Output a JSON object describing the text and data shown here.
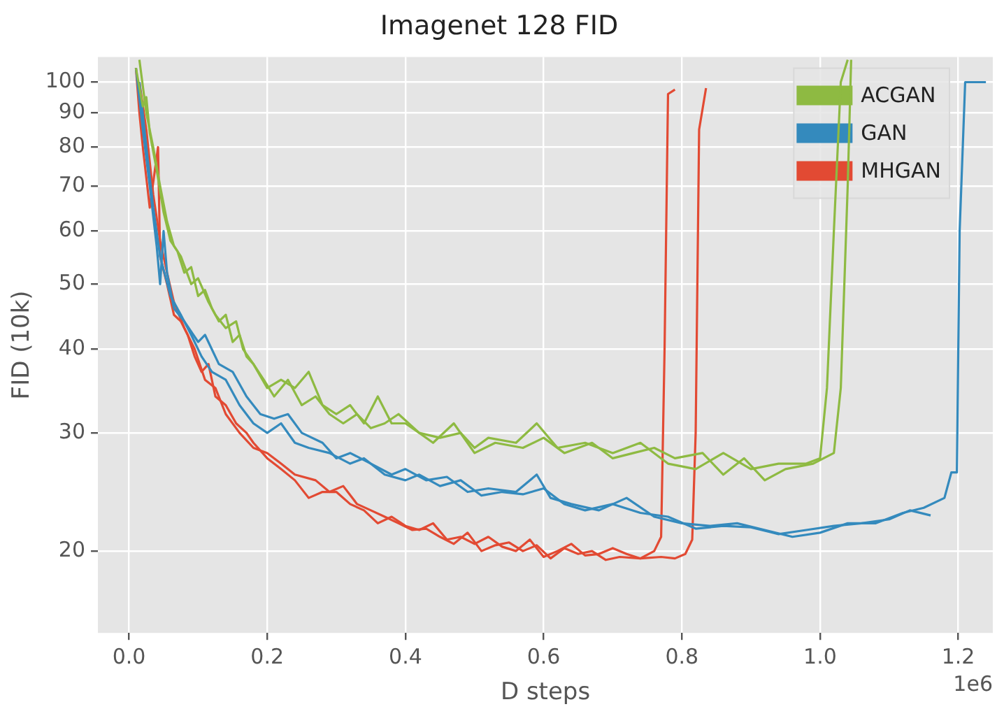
{
  "chart_data": {
    "type": "line",
    "title": "Imagenet 128 FID",
    "xlabel": "D steps",
    "ylabel": "FID (10k)",
    "annotations": [
      "1e6"
    ],
    "log": "y",
    "grid": true,
    "legend": "top right",
    "marker": "none",
    "line_style": "solid",
    "xlim": [
      -0.045,
      1.25
    ],
    "xticks": [
      {
        "value": 0,
        "label": "0.0"
      },
      0.2,
      0.4,
      0.6,
      0.8,
      {
        "value": 1,
        "label": "1.0"
      },
      1.2
    ],
    "ylim": [
      15.1,
      109
    ],
    "yticks": [
      20,
      30,
      40,
      50,
      60,
      70,
      80,
      90,
      100
    ],
    "series": [
      {
        "name": "ACGAN",
        "color": "#8eba42",
        "x": [
          0.01,
          0.02,
          0.025,
          0.03,
          0.04,
          0.05,
          0.06,
          0.07,
          0.08,
          0.09,
          0.1,
          0.11,
          0.12,
          0.13,
          0.14,
          0.15,
          0.16,
          0.17,
          0.18,
          0.2,
          0.22,
          0.24,
          0.26,
          0.28,
          0.3,
          0.32,
          0.34,
          0.36,
          0.38,
          0.4,
          0.42,
          0.45,
          0.48,
          0.5,
          0.52,
          0.56,
          0.59,
          0.62,
          0.66,
          0.7,
          0.74,
          0.78,
          0.82,
          0.86,
          0.9,
          0.94,
          0.98,
          1.0,
          1.01,
          1.02,
          1.03,
          1.04
        ],
        "values": [
          105,
          92,
          95,
          84,
          74,
          64,
          58,
          56,
          52,
          53,
          48,
          49,
          46,
          44,
          45,
          41,
          42,
          39,
          38,
          35,
          36,
          35,
          37,
          33,
          32,
          33,
          31,
          34,
          31,
          31,
          30,
          29.5,
          30,
          28.5,
          29.5,
          29,
          31,
          28.5,
          29,
          28,
          29,
          27,
          26.5,
          28,
          26.5,
          27,
          27,
          27.5,
          35,
          60,
          100,
          108
        ]
      },
      {
        "color": "#8eba42",
        "x": [
          0.015,
          0.025,
          0.035,
          0.045,
          0.055,
          0.065,
          0.075,
          0.09,
          0.1,
          0.115,
          0.125,
          0.14,
          0.155,
          0.165,
          0.18,
          0.195,
          0.21,
          0.23,
          0.25,
          0.27,
          0.29,
          0.31,
          0.33,
          0.35,
          0.37,
          0.39,
          0.42,
          0.44,
          0.47,
          0.5,
          0.53,
          0.57,
          0.6,
          0.63,
          0.67,
          0.7,
          0.73,
          0.76,
          0.79,
          0.83,
          0.86,
          0.89,
          0.92,
          0.95,
          0.99,
          1.02,
          1.03,
          1.04,
          1.045
        ],
        "values": [
          108,
          90,
          80,
          70,
          62,
          57,
          55,
          50,
          51,
          47,
          45,
          43,
          44,
          40,
          38,
          36,
          34,
          36,
          33,
          34,
          32,
          31,
          32,
          30.5,
          31,
          32,
          30,
          29,
          31,
          28,
          29,
          28.5,
          29.5,
          28,
          29,
          27.5,
          28,
          28.5,
          27.5,
          28,
          26,
          27.5,
          25.5,
          26.5,
          27,
          28,
          35,
          70,
          108
        ]
      },
      {
        "name": "GAN",
        "color": "#348abd",
        "x": [
          0.01,
          0.02,
          0.03,
          0.04,
          0.045,
          0.05,
          0.055,
          0.065,
          0.08,
          0.1,
          0.11,
          0.13,
          0.15,
          0.17,
          0.19,
          0.21,
          0.23,
          0.25,
          0.28,
          0.3,
          0.32,
          0.35,
          0.38,
          0.4,
          0.43,
          0.46,
          0.49,
          0.52,
          0.56,
          0.59,
          0.61,
          0.64,
          0.68,
          0.72,
          0.76,
          0.8,
          0.84,
          0.88,
          0.92,
          0.96,
          1.0,
          1.04,
          1.08,
          1.12,
          1.15,
          1.18,
          1.19,
          1.198,
          1.202,
          1.21,
          1.24
        ],
        "values": [
          105,
          85,
          70,
          57,
          50,
          60,
          52,
          46,
          44,
          41,
          42,
          38,
          37,
          34,
          32,
          31.5,
          32,
          30,
          29,
          27.5,
          28,
          27,
          26,
          26.5,
          25.5,
          25.8,
          24.5,
          24.8,
          24.5,
          26,
          24,
          23.5,
          23,
          24,
          22.5,
          22,
          21.8,
          22,
          21.5,
          21,
          21.3,
          22,
          22,
          22.8,
          23.2,
          24,
          26.2,
          26.2,
          60,
          100,
          100
        ]
      },
      {
        "color": "#348abd",
        "x": [
          0.015,
          0.025,
          0.035,
          0.045,
          0.06,
          0.075,
          0.09,
          0.105,
          0.12,
          0.14,
          0.16,
          0.18,
          0.2,
          0.22,
          0.24,
          0.26,
          0.29,
          0.32,
          0.34,
          0.37,
          0.4,
          0.42,
          0.45,
          0.48,
          0.51,
          0.54,
          0.57,
          0.6,
          0.63,
          0.66,
          0.7,
          0.74,
          0.78,
          0.82,
          0.86,
          0.9,
          0.94,
          0.98,
          1.02,
          1.06,
          1.1,
          1.13,
          1.16
        ],
        "values": [
          100,
          80,
          65,
          55,
          48,
          45,
          42,
          39,
          37,
          36,
          33,
          31,
          30,
          31,
          29,
          28.5,
          28,
          27,
          27.5,
          26,
          25.5,
          26,
          25,
          25.5,
          24.2,
          24.5,
          24.3,
          24.8,
          23.5,
          23,
          23.5,
          22.8,
          22.5,
          21.6,
          21.8,
          21.7,
          21.2,
          21.5,
          21.8,
          22,
          22.3,
          23,
          22.6
        ]
      },
      {
        "name": "MHGAN",
        "color": "#e24a33",
        "x": [
          0.01,
          0.015,
          0.02,
          0.03,
          0.042,
          0.045,
          0.055,
          0.065,
          0.075,
          0.085,
          0.095,
          0.105,
          0.115,
          0.125,
          0.14,
          0.155,
          0.17,
          0.18,
          0.2,
          0.22,
          0.24,
          0.26,
          0.28,
          0.3,
          0.32,
          0.34,
          0.36,
          0.38,
          0.4,
          0.42,
          0.44,
          0.46,
          0.48,
          0.5,
          0.52,
          0.54,
          0.56,
          0.58,
          0.6,
          0.62,
          0.64,
          0.66,
          0.68,
          0.7,
          0.72,
          0.74,
          0.76,
          0.77,
          0.775,
          0.78,
          0.79
        ],
        "values": [
          105,
          90,
          80,
          65,
          80,
          55,
          50,
          45,
          44,
          42,
          39,
          37,
          38,
          34,
          33,
          31,
          30,
          29,
          27.5,
          26.5,
          25.5,
          24,
          24.5,
          24.5,
          23.5,
          23,
          22,
          22.5,
          21.8,
          21.5,
          22,
          20.8,
          21,
          20.5,
          21,
          20.3,
          20,
          20.8,
          19.6,
          20,
          20.5,
          19.7,
          19.8,
          20.2,
          19.8,
          19.5,
          20,
          21,
          40,
          96,
          97.5
        ]
      },
      {
        "color": "#e24a33",
        "x": [
          0.015,
          0.025,
          0.035,
          0.045,
          0.055,
          0.065,
          0.08,
          0.095,
          0.11,
          0.125,
          0.14,
          0.16,
          0.18,
          0.2,
          0.22,
          0.24,
          0.27,
          0.29,
          0.31,
          0.33,
          0.35,
          0.37,
          0.39,
          0.41,
          0.43,
          0.45,
          0.47,
          0.49,
          0.51,
          0.53,
          0.55,
          0.57,
          0.59,
          0.61,
          0.63,
          0.65,
          0.67,
          0.69,
          0.71,
          0.74,
          0.77,
          0.79,
          0.805,
          0.815,
          0.82,
          0.825,
          0.835
        ],
        "values": [
          100,
          85,
          68,
          58,
          52,
          47,
          43,
          40,
          36,
          35,
          32,
          30,
          28.5,
          28,
          27,
          26,
          25.5,
          24.5,
          25,
          23.5,
          23,
          22.5,
          22,
          21.5,
          21.6,
          21,
          20.5,
          21.3,
          20,
          20.4,
          20.6,
          20,
          20.4,
          19.5,
          20.2,
          19.8,
          20,
          19.4,
          19.6,
          19.5,
          19.6,
          19.5,
          19.8,
          20.8,
          30,
          85,
          98
        ]
      }
    ]
  }
}
